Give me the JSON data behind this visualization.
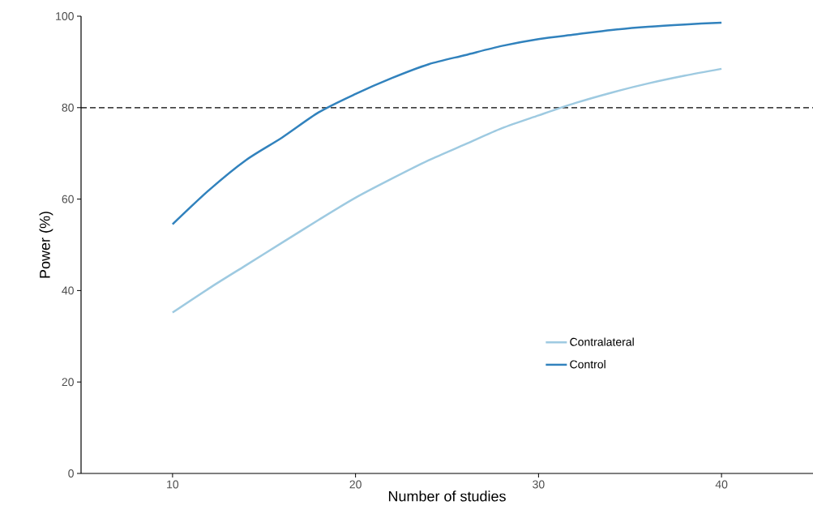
{
  "chart_data": {
    "type": "line",
    "xlabel": "Number of studies",
    "ylabel": "Power (%)",
    "x": [
      10,
      12,
      14,
      16,
      18,
      20,
      22,
      24,
      26,
      28,
      30,
      32,
      34,
      36,
      38,
      40
    ],
    "series": [
      {
        "name": "Contralateral",
        "color": "#9ecae1",
        "values": [
          35.2,
          40.5,
          45.5,
          50.5,
          55.5,
          60.3,
          64.5,
          68.5,
          72,
          75.5,
          78.3,
          81,
          83.3,
          85.3,
          87,
          88.5
        ]
      },
      {
        "name": "Control",
        "color": "#3182bd",
        "values": [
          54.5,
          62,
          68.5,
          73.5,
          79,
          83,
          86.5,
          89.5,
          91.5,
          93.5,
          95,
          96,
          97,
          97.7,
          98.2,
          98.6
        ]
      }
    ],
    "xlim": [
      5,
      45
    ],
    "ylim": [
      0,
      100
    ],
    "xticks": [
      10,
      20,
      30,
      40
    ],
    "yticks": [
      0,
      20,
      40,
      60,
      80,
      100
    ],
    "ref_lines": [
      {
        "axis": "y",
        "value": 80,
        "color": "#000000",
        "line_style": "dashed"
      }
    ],
    "grid": false,
    "legend": "bottom right",
    "marker": "none",
    "line_style": "solid"
  }
}
